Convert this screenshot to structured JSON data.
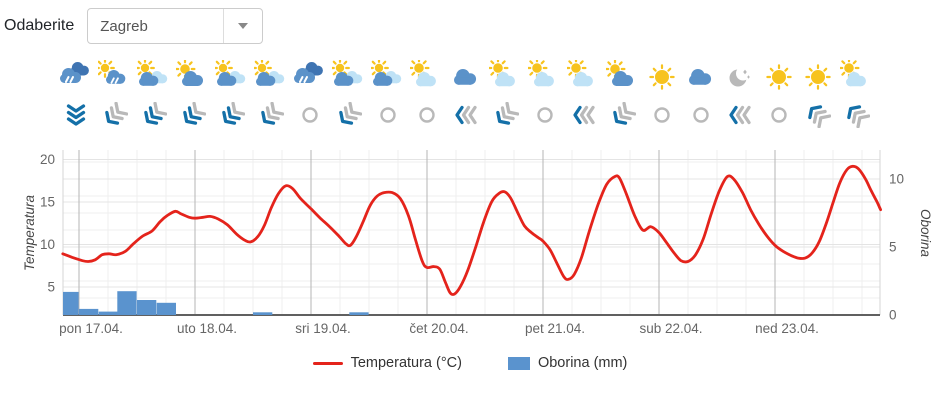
{
  "toolbar": {
    "label": "Odaberite",
    "select_value": "Zagreb"
  },
  "forecast": {
    "weather_icons": [
      "rain",
      "sun-rain",
      "sun-cloud-light",
      "sun-cloud",
      "sun-cloud-light",
      "sun-cloud-light",
      "rain",
      "sun-cloud-light",
      "sun-cloud-light",
      "sun-light",
      "cloud",
      "sun-light",
      "sun-light",
      "sun-light",
      "sun-cloud",
      "sun",
      "cloud",
      "moon",
      "sun",
      "sun",
      "sun-light"
    ],
    "wind_icons": [
      {
        "dir": "down",
        "strength": 3
      },
      {
        "dir": "down-left",
        "strength": 1
      },
      {
        "dir": "down-left",
        "strength": 2
      },
      {
        "dir": "down-left",
        "strength": 2
      },
      {
        "dir": "down-left",
        "strength": 2
      },
      {
        "dir": "down-left",
        "strength": 1
      },
      {
        "dir": "calm",
        "strength": 0
      },
      {
        "dir": "down-left",
        "strength": 1
      },
      {
        "dir": "calm",
        "strength": 0
      },
      {
        "dir": "calm",
        "strength": 0
      },
      {
        "dir": "left",
        "strength": 1
      },
      {
        "dir": "down-left",
        "strength": 1
      },
      {
        "dir": "calm",
        "strength": 0
      },
      {
        "dir": "left",
        "strength": 1
      },
      {
        "dir": "down-left",
        "strength": 1
      },
      {
        "dir": "calm",
        "strength": 0
      },
      {
        "dir": "calm",
        "strength": 0
      },
      {
        "dir": "left",
        "strength": 1
      },
      {
        "dir": "calm",
        "strength": 0
      },
      {
        "dir": "up-left",
        "strength": 1
      },
      {
        "dir": "up-left",
        "strength": 1
      }
    ]
  },
  "chart_data": {
    "type": "line+bar",
    "x_axis": {
      "labels": [
        "pon 17.04.",
        "uto 18.04.",
        "sri 19.04.",
        "čet 20.04.",
        "pet 21.04.",
        "sub 22.04.",
        "ned 23.04."
      ],
      "unit": "days"
    },
    "y_left": {
      "title": "Temperatura",
      "ticks": [
        5,
        10,
        15,
        20
      ]
    },
    "y_right": {
      "title": "Oborina",
      "ticks": [
        0,
        5,
        10
      ]
    },
    "series": [
      {
        "name": "Temperatura (°C)",
        "type": "line",
        "color": "#e4231b",
        "points": [
          [
            -0.14,
            8.9
          ],
          [
            -0.06,
            8.5
          ],
          [
            0.03,
            8.1
          ],
          [
            0.08,
            8.0
          ],
          [
            0.14,
            8.2
          ],
          [
            0.2,
            8.8
          ],
          [
            0.26,
            8.9
          ],
          [
            0.32,
            8.8
          ],
          [
            0.4,
            9.2
          ],
          [
            0.47,
            10.1
          ],
          [
            0.55,
            11.0
          ],
          [
            0.63,
            11.6
          ],
          [
            0.7,
            12.7
          ],
          [
            0.76,
            13.4
          ],
          [
            0.83,
            13.9
          ],
          [
            0.88,
            13.6
          ],
          [
            0.95,
            13.2
          ],
          [
            1.0,
            13.1
          ],
          [
            1.07,
            13.2
          ],
          [
            1.13,
            13.3
          ],
          [
            1.2,
            13.0
          ],
          [
            1.28,
            12.3
          ],
          [
            1.36,
            11.2
          ],
          [
            1.43,
            10.5
          ],
          [
            1.48,
            10.3
          ],
          [
            1.54,
            10.9
          ],
          [
            1.6,
            12.3
          ],
          [
            1.66,
            14.4
          ],
          [
            1.72,
            16.0
          ],
          [
            1.78,
            16.9
          ],
          [
            1.84,
            16.6
          ],
          [
            1.91,
            15.4
          ],
          [
            2.0,
            14.2
          ],
          [
            2.08,
            13.1
          ],
          [
            2.16,
            12.1
          ],
          [
            2.24,
            11.0
          ],
          [
            2.3,
            10.1
          ],
          [
            2.34,
            9.9
          ],
          [
            2.39,
            10.9
          ],
          [
            2.45,
            12.7
          ],
          [
            2.51,
            14.6
          ],
          [
            2.57,
            15.7
          ],
          [
            2.63,
            16.1
          ],
          [
            2.7,
            16.1
          ],
          [
            2.77,
            15.4
          ],
          [
            2.84,
            13.4
          ],
          [
            2.9,
            10.6
          ],
          [
            2.96,
            8.0
          ],
          [
            3.0,
            7.3
          ],
          [
            3.06,
            7.4
          ],
          [
            3.11,
            7.1
          ],
          [
            3.16,
            5.5
          ],
          [
            3.2,
            4.3
          ],
          [
            3.24,
            4.2
          ],
          [
            3.29,
            5.1
          ],
          [
            3.35,
            6.9
          ],
          [
            3.42,
            9.7
          ],
          [
            3.49,
            12.7
          ],
          [
            3.56,
            15.1
          ],
          [
            3.62,
            16.0
          ],
          [
            3.67,
            16.2
          ],
          [
            3.72,
            15.5
          ],
          [
            3.78,
            13.8
          ],
          [
            3.84,
            12.2
          ],
          [
            3.9,
            11.4
          ],
          [
            3.96,
            10.8
          ],
          [
            4.0,
            10.4
          ],
          [
            4.06,
            9.4
          ],
          [
            4.12,
            7.8
          ],
          [
            4.18,
            6.2
          ],
          [
            4.22,
            5.9
          ],
          [
            4.27,
            6.5
          ],
          [
            4.33,
            8.4
          ],
          [
            4.4,
            11.6
          ],
          [
            4.48,
            14.9
          ],
          [
            4.55,
            17.1
          ],
          [
            4.62,
            18.0
          ],
          [
            4.66,
            17.8
          ],
          [
            4.72,
            15.9
          ],
          [
            4.79,
            13.4
          ],
          [
            4.86,
            11.7
          ],
          [
            4.93,
            12.1
          ],
          [
            5.0,
            11.4
          ],
          [
            5.06,
            10.3
          ],
          [
            5.13,
            9.0
          ],
          [
            5.19,
            8.1
          ],
          [
            5.25,
            8.0
          ],
          [
            5.31,
            8.7
          ],
          [
            5.38,
            10.6
          ],
          [
            5.45,
            13.6
          ],
          [
            5.52,
            16.3
          ],
          [
            5.59,
            18.0
          ],
          [
            5.65,
            17.6
          ],
          [
            5.72,
            16.1
          ],
          [
            5.79,
            14.1
          ],
          [
            5.86,
            12.4
          ],
          [
            5.93,
            11.0
          ],
          [
            6.0,
            9.9
          ],
          [
            6.07,
            9.2
          ],
          [
            6.14,
            8.7
          ],
          [
            6.2,
            8.4
          ],
          [
            6.26,
            8.4
          ],
          [
            6.32,
            9.0
          ],
          [
            6.38,
            10.3
          ],
          [
            6.44,
            12.4
          ],
          [
            6.5,
            14.9
          ],
          [
            6.56,
            17.3
          ],
          [
            6.62,
            18.8
          ],
          [
            6.67,
            19.2
          ],
          [
            6.72,
            18.9
          ],
          [
            6.78,
            17.7
          ],
          [
            6.83,
            16.3
          ],
          [
            6.88,
            15.0
          ],
          [
            6.91,
            14.1
          ]
        ]
      },
      {
        "name": "Oborina (mm)",
        "type": "bar",
        "color": "#5a93ce",
        "bars": [
          {
            "day": -0.17,
            "mm": 1.7
          },
          {
            "day": 0,
            "mm": 0.45
          },
          {
            "day": 0.17,
            "mm": 0.25
          },
          {
            "day": 0.33,
            "mm": 1.75
          },
          {
            "day": 0.5,
            "mm": 1.1
          },
          {
            "day": 0.67,
            "mm": 0.9
          },
          {
            "day": 1.5,
            "mm": 0.2
          },
          {
            "day": 2.33,
            "mm": 0.2
          }
        ]
      }
    ],
    "legend_position": "bottom"
  },
  "colors": {
    "sun": "#f7c31e",
    "cloud_blue": "#5b92c9",
    "cloud_light": "#bfe2f6",
    "cloud_dark": "#3f74b2",
    "wind_blue": "#1470a8",
    "wind_gray": "#b9b9b9",
    "grid_major_v": "#b6b6b6",
    "grid_minor": "#efefef",
    "grid_h": "#e4e4e4",
    "axis_line": "#606060",
    "tick_text": "#666666"
  }
}
